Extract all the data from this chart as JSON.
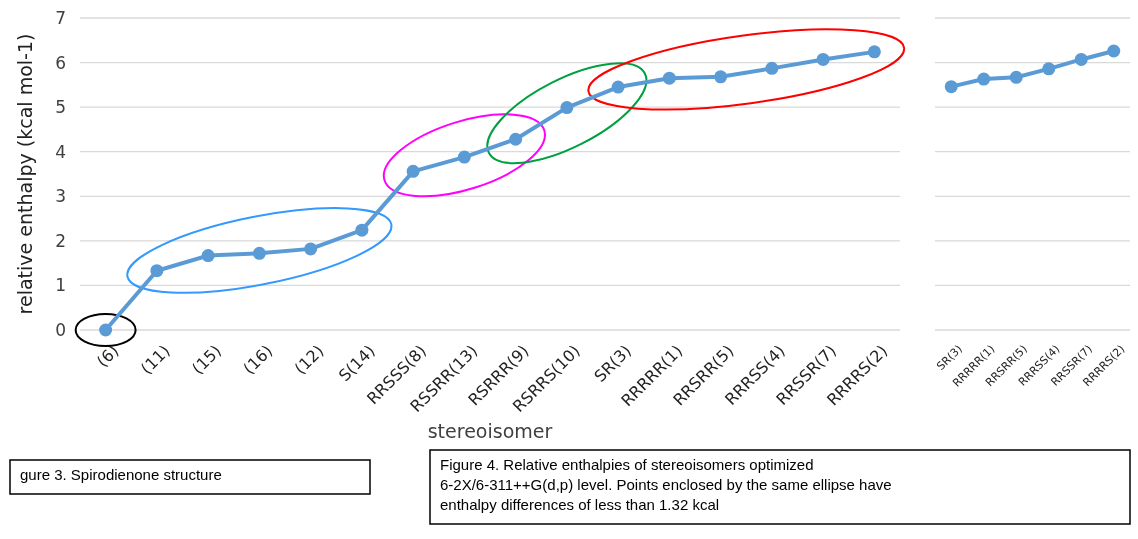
{
  "chart_data": [
    {
      "type": "line",
      "ylabel": "relative enthalpy (kcal mol-1)",
      "xlabel": "stereoisomer",
      "categories": [
        "(6)",
        "(11)",
        "(15)",
        "(16)",
        "(12)",
        "S(14)",
        "RRSSS(8)",
        "RSSRR(13)",
        "RSRRR(9)",
        "RSRRS(10)",
        "SR(3)",
        "RRRRR(1)",
        "RRSRR(5)",
        "RRRSS(4)",
        "RRSSR(7)",
        "RRRRS(2)"
      ],
      "series": [
        {
          "color": "#5b9bd5",
          "values": [
            0,
            1.33,
            1.67,
            1.72,
            1.82,
            2.24,
            3.56,
            3.88,
            4.28,
            4.99,
            5.45,
            5.65,
            5.68,
            5.87,
            6.07,
            6.24
          ]
        }
      ],
      "ylim": [
        0,
        7
      ],
      "yticks": [
        0,
        1,
        2,
        3,
        4,
        5,
        6,
        7
      ],
      "grid": "y",
      "marker": "circle",
      "annotations": [
        "gure 3. Spirodienone structure",
        "Figure 4.  Relative enthalpies of stereoisomers optimized 6-2X/6-311++G(d,p) level.  Points enclosed by the same ellipse have enthalpy differences of less than 1.32 kcal"
      ]
    },
    {
      "type": "line",
      "categories": [
        "SR(3)",
        "RRRRR(1)",
        "RRSRR(5)",
        "RRRSS(4)",
        "RRSSR(7)",
        "RRRRS(2)"
      ],
      "series": [
        {
          "color": "#5b9bd5",
          "values": [
            5.46,
            5.63,
            5.67,
            5.86,
            6.07,
            6.26
          ]
        }
      ],
      "ylim": [
        0,
        7
      ],
      "yticks": [
        0,
        1,
        2,
        3,
        4,
        5,
        6,
        7
      ],
      "grid": "y",
      "marker": "circle",
      "tick_labels": "x"
    }
  ]
}
